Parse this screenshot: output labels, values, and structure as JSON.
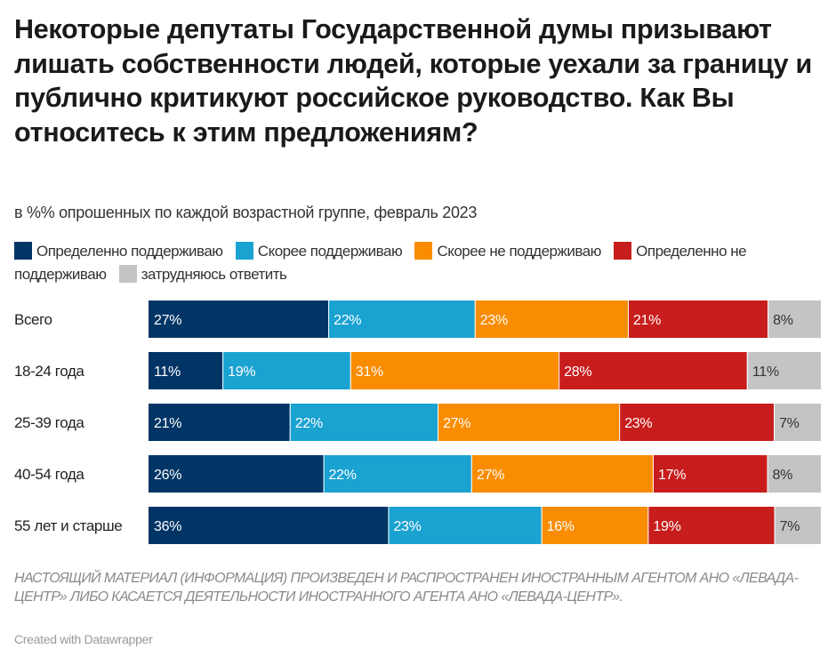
{
  "chart_data": {
    "type": "bar",
    "orientation": "horizontal",
    "stacked": true,
    "title": "Некоторые депутаты Государственной думы призывают лишать собственности людей, которые уехали за границу и публично критикуют российское руководство. Как Вы относитесь к этим предложениям?",
    "subtitle": "в %% опрошенных по каждой возрастной группе, февраль 2023",
    "categories": [
      "Всего",
      "18-24 года",
      "25-39 года",
      "40-54 года",
      "55 лет и старше"
    ],
    "series": [
      {
        "name": "Определенно поддерживаю",
        "color": "#003566",
        "values": [
          27,
          11,
          21,
          26,
          36
        ]
      },
      {
        "name": "Скорее поддерживаю",
        "color": "#1aa2d1",
        "values": [
          22,
          19,
          22,
          22,
          23
        ]
      },
      {
        "name": "Скорее не поддерживаю",
        "color": "#f98c00",
        "values": [
          23,
          31,
          27,
          27,
          16
        ]
      },
      {
        "name": "Определенно не поддерживаю",
        "color": "#c71e1d",
        "values": [
          21,
          28,
          23,
          17,
          19
        ]
      },
      {
        "name": "затрудняюсь ответить",
        "color": "#c4c4c4",
        "values": [
          8,
          11,
          7,
          8,
          7
        ]
      }
    ],
    "value_suffix": "%",
    "legend_position": "top",
    "grid": false
  },
  "footer": {
    "note": "НАСТОЯЩИЙ МАТЕРИАЛ (ИНФОРМАЦИЯ) ПРОИЗВЕДЕН И РАСПРОСТРАНЕН ИНОСТРАННЫМ АГЕНТОМ АНО «ЛЕВАДА-ЦЕНТР» ЛИБО КАСАЕТСЯ ДЕЯТЕЛЬНОСТИ ИНОСТРАННОГО АГЕНТА АНО «ЛЕВАДА-ЦЕНТР».",
    "credit": "Created with Datawrapper"
  }
}
